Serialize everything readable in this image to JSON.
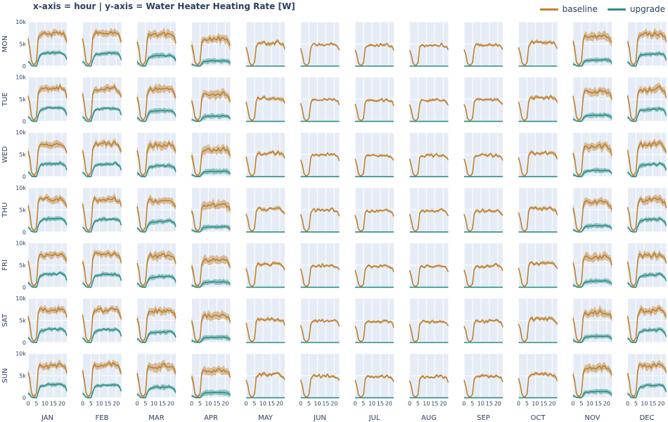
{
  "title": "x-axis = hour | y-axis = Water Heater Heating Rate [W]",
  "legend": [
    {
      "name": "baseline",
      "color": "#c0802b"
    },
    {
      "name": "upgrade",
      "color": "#2b8e86"
    }
  ],
  "chart_data": {
    "type": "line",
    "rows": [
      "MON",
      "TUE",
      "WED",
      "THU",
      "FRI",
      "SAT",
      "SUN"
    ],
    "cols": [
      "JAN",
      "FEB",
      "MAR",
      "APR",
      "MAY",
      "JUN",
      "JUL",
      "AUG",
      "SEP",
      "OCT",
      "NOV",
      "DEC"
    ],
    "x": [
      0,
      1,
      2,
      3,
      4,
      5,
      6,
      7,
      8,
      9,
      10,
      11,
      12,
      13,
      14,
      15,
      16,
      17,
      18,
      19,
      20,
      21,
      22,
      23
    ],
    "x_ticks": [
      0,
      5,
      10,
      15,
      20
    ],
    "x_tick_labels": [
      "0",
      "5",
      "10",
      "15",
      "20"
    ],
    "y_ticks": [
      0,
      5000,
      10000
    ],
    "y_tick_labels": [
      "0",
      "5k",
      "10k"
    ],
    "ylim": [
      0,
      10000
    ],
    "grid": true,
    "legend_position": "top-right",
    "baseline_level_by_month": [
      7500,
      7500,
      7200,
      6200,
      5300,
      5000,
      4800,
      4800,
      4900,
      5400,
      6800,
      7300
    ],
    "upgrade_level_by_month": [
      3000,
      2900,
      2400,
      1200,
      0,
      0,
      0,
      0,
      0,
      0,
      1400,
      2800
    ],
    "band_halfwidth_by_month": [
      900,
      900,
      1100,
      1200,
      500,
      350,
      350,
      350,
      400,
      500,
      1100,
      1000
    ],
    "baseline_profile_shape": [
      0.8,
      0.55,
      0.15,
      0.05,
      0.05,
      0.15,
      0.85,
      0.98,
      1.0,
      0.96,
      0.98,
      1.0,
      0.95,
      1.0,
      0.97,
      0.99,
      1.02,
      0.98,
      1.0,
      1.03,
      0.97,
      0.95,
      0.9,
      0.75
    ],
    "upgrade_profile_shape": [
      0.35,
      0.25,
      0.05,
      0,
      0,
      0,
      0.45,
      0.8,
      0.9,
      0.92,
      0.95,
      0.97,
      1.0,
      1.0,
      0.98,
      1.02,
      1.0,
      0.97,
      1.0,
      1.05,
      1.0,
      0.95,
      0.85,
      0.5
    ]
  }
}
